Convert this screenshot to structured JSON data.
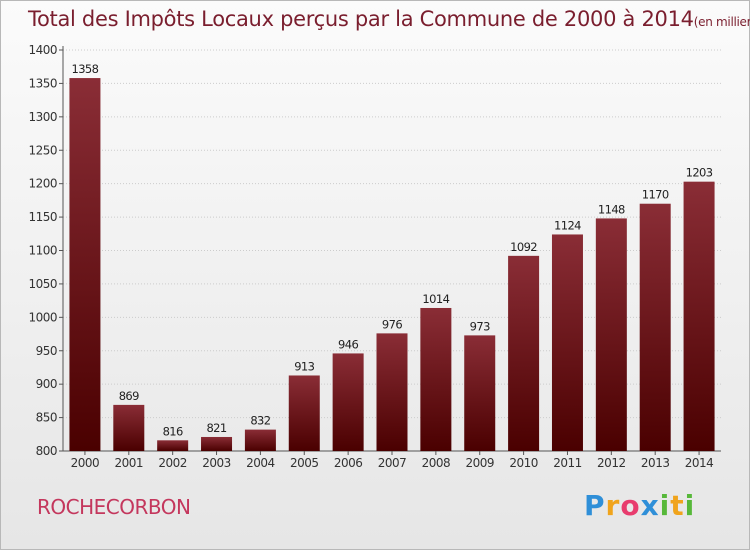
{
  "page": {
    "title": "Total des Impôts Locaux perçus par la Commune de 2000 à 2014",
    "subtitle": "(en milliers d'€)",
    "commune": "ROCHECORBON",
    "brand": {
      "letters": [
        "P",
        "r",
        "o",
        "x",
        "i",
        "t",
        "i"
      ],
      "letter_colors": [
        "#2f8fd8",
        "#f0a41c",
        "#e83c6e",
        "#2f8fd8",
        "#57b83a",
        "#f0a41c",
        "#57b83a"
      ]
    }
  },
  "colors": {
    "bar_top": "#8a2d36",
    "bar_bottom": "#4a0000",
    "title": "#7a1e2e",
    "commune": "#c4375d",
    "grid": "#cccccc"
  },
  "chart_data": {
    "type": "bar",
    "title": "Total des Impôts Locaux perçus par la Commune de 2000 à 2014",
    "subtitle": "(en milliers d'€)",
    "xlabel": "",
    "ylabel": "",
    "categories": [
      "2000",
      "2001",
      "2002",
      "2003",
      "2004",
      "2005",
      "2006",
      "2007",
      "2008",
      "2009",
      "2010",
      "2011",
      "2012",
      "2013",
      "2014"
    ],
    "values": [
      1358,
      869,
      816,
      821,
      832,
      913,
      946,
      976,
      1014,
      973,
      1092,
      1124,
      1148,
      1170,
      1203
    ],
    "ylim": [
      800,
      1400
    ],
    "yticks": [
      800,
      850,
      900,
      950,
      1000,
      1050,
      1100,
      1150,
      1200,
      1250,
      1300,
      1350,
      1400
    ],
    "grid": true,
    "data_labels": true
  }
}
